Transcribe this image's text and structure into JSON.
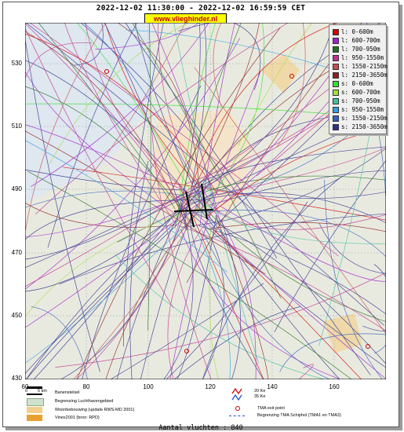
{
  "header": {
    "time_range": "2022-12-02 11:30:00 - 2022-12-02 16:59:59 CET",
    "site": "www.vlieghinder.nl"
  },
  "axes": {
    "y_ticks": [
      "530",
      "510",
      "490",
      "470",
      "450",
      "430"
    ],
    "x_ticks": [
      "60",
      "80",
      "100",
      "120",
      "140",
      "160"
    ]
  },
  "legend": [
    {
      "label": "l: 0-600m",
      "color": "#d40000"
    },
    {
      "label": "l: 600-700m",
      "color": "#a020d0"
    },
    {
      "label": "l: 700-950m",
      "color": "#207020"
    },
    {
      "label": "l: 950-1550m",
      "color": "#c03090"
    },
    {
      "label": "l: 1550-2150m",
      "color": "#c05050"
    },
    {
      "label": "l: 2150-3650m",
      "color": "#8b2020"
    },
    {
      "label": "s: 0-600m",
      "color": "#30e030"
    },
    {
      "label": "s: 600-700m",
      "color": "#a0e040"
    },
    {
      "label": "s: 700-950m",
      "color": "#40c0a0"
    },
    {
      "label": "s: 950-1550m",
      "color": "#30a0e0"
    },
    {
      "label": "s: 1550-2150m",
      "color": "#3060c0"
    },
    {
      "label": "s: 2150-3650m",
      "color": "#303090"
    }
  ],
  "bottom_legend": {
    "scale_left": "0",
    "scale_right": "5 km",
    "runway": "Banenstelsel",
    "airport_boundary": "Begrenzing Luchthavengebied",
    "housing": "Woonbebouwing (update RWS-MD 2001)",
    "vinex": "Vinex2001 (bron: RPD)",
    "noise_ke": "20 Ke",
    "noise_ke2": "35 Ke",
    "tma_exit": "TMA exit point",
    "tma_boundary": "Begrenzing TMA Schiphol  (TMA1 en TMA3)"
  },
  "footer": {
    "count": "Aantal vluchten : 840"
  }
}
